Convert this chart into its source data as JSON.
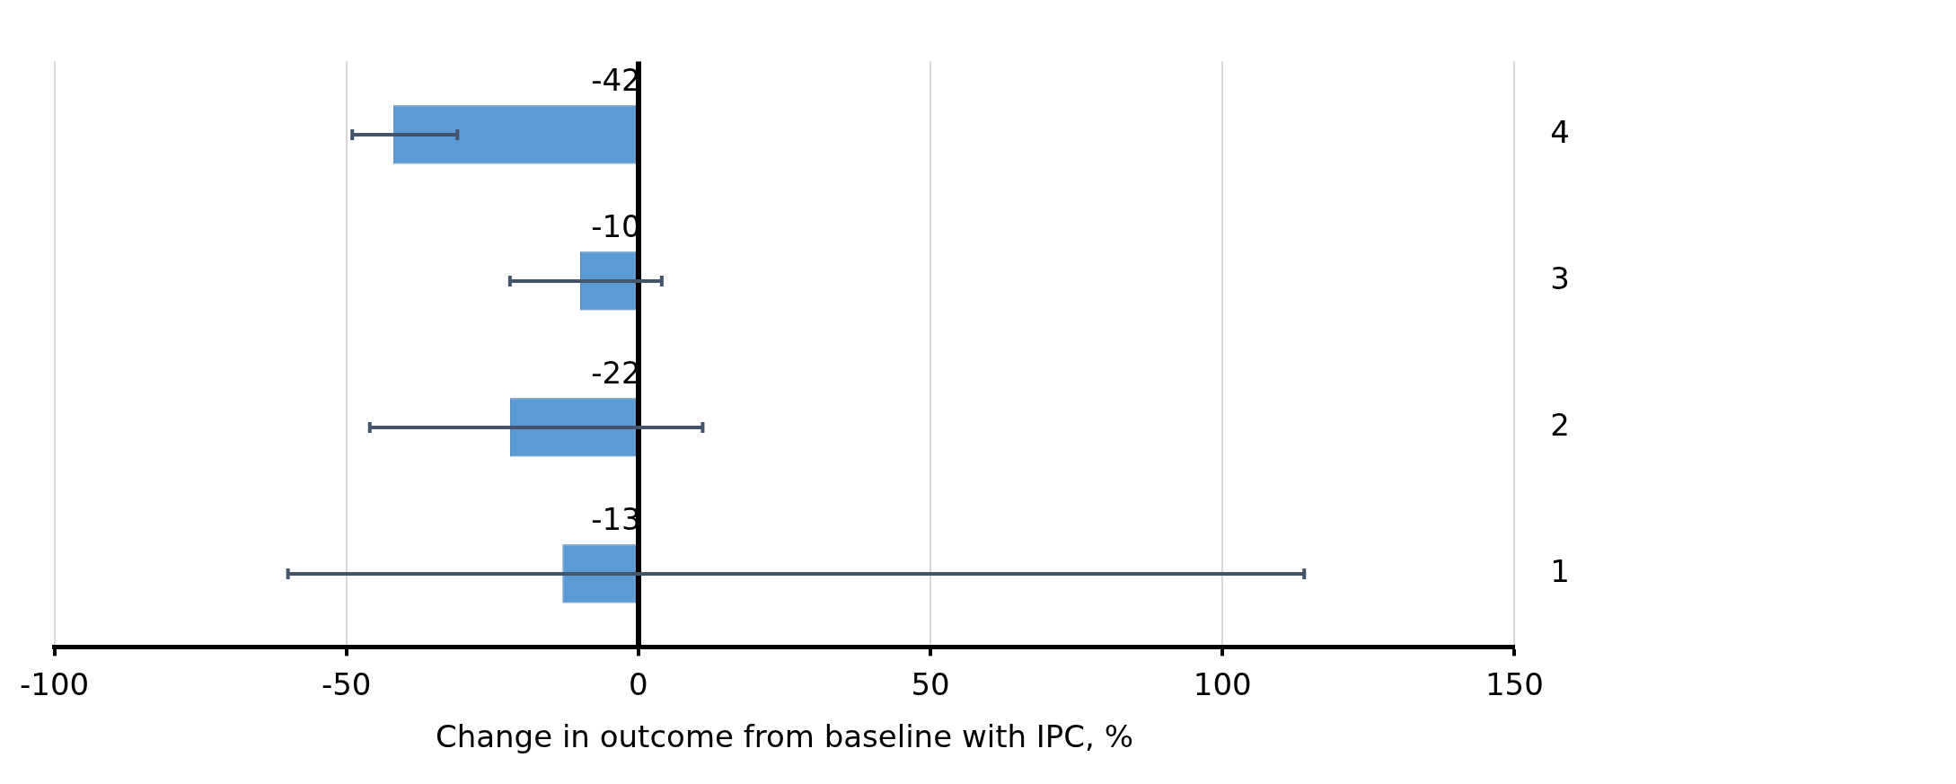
{
  "chart_data": {
    "type": "bar",
    "orientation": "horizontal",
    "xlabel": "Change in outcome from baseline with IPC, %",
    "categories": [
      "4",
      "3",
      "2",
      "1"
    ],
    "values": [
      -42,
      -10,
      -22,
      -13
    ],
    "errors": [
      [
        -49,
        -31
      ],
      [
        -22,
        4
      ],
      [
        -46,
        11
      ],
      [
        -60,
        114
      ]
    ],
    "color": "#5b9bd5",
    "xlim": [
      -100,
      150
    ],
    "xticks": [
      -100,
      -50,
      0,
      50,
      100,
      150
    ],
    "grid": "x",
    "data_labels": true,
    "legend": false
  }
}
